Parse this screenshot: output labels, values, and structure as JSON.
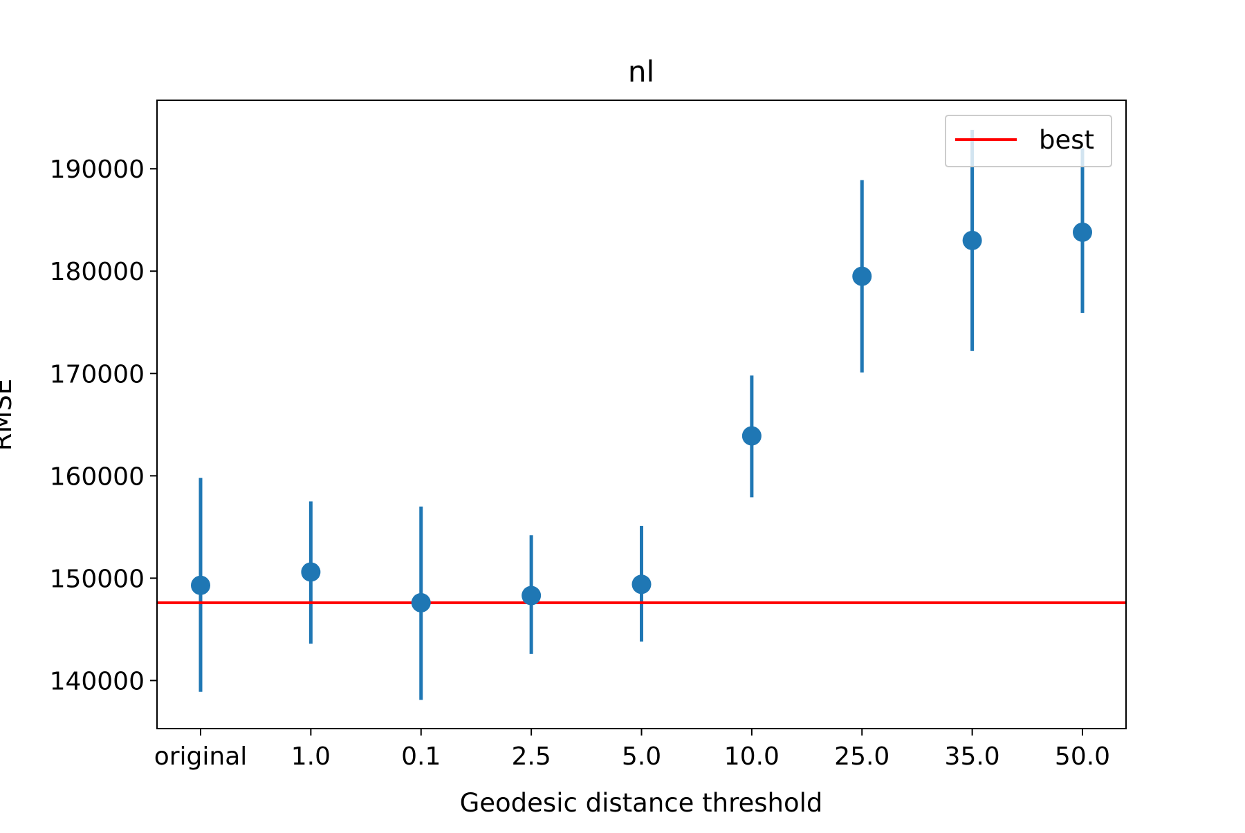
{
  "chart_data": {
    "type": "scatter",
    "title": "nl",
    "xlabel": "Geodesic distance threshold",
    "ylabel": "RMSE",
    "categories": [
      "original",
      "1.0",
      "0.1",
      "2.5",
      "5.0",
      "10.0",
      "25.0",
      "35.0",
      "50.0"
    ],
    "series": [
      {
        "values": [
          149300,
          150600,
          147600,
          148300,
          149400,
          163900,
          179500,
          183000,
          183800
        ],
        "error_low": [
          138900,
          143600,
          138100,
          142600,
          143800,
          157900,
          170100,
          172200,
          175900
        ],
        "error_high": [
          159800,
          157500,
          157000,
          154200,
          155100,
          169800,
          188900,
          193800,
          192000
        ],
        "color": "#1f77b4"
      }
    ],
    "reference_line": {
      "name": "best",
      "value": 147600,
      "color": "#ff0000"
    },
    "yticks": [
      140000,
      150000,
      160000,
      170000,
      180000,
      190000
    ],
    "ylim": [
      135300,
      196700
    ],
    "grid": false,
    "legend_position": "top-right"
  }
}
